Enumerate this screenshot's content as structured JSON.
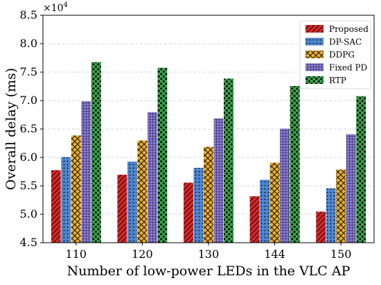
{
  "chart_data": {
    "type": "bar",
    "title": "",
    "xlabel": "Number of low-power LEDs in the VLC AP",
    "ylabel": "Overall delay (ms)",
    "y_multiplier": "×10",
    "y_multiplier_exp": "4",
    "categories": [
      "110",
      "120",
      "130",
      "144",
      "150"
    ],
    "ylim": [
      4.5,
      8.5
    ],
    "y_ticks": [
      "4.5",
      "5.0",
      "5.5",
      "6.0",
      "6.5",
      "7.0",
      "7.5",
      "8.0",
      "8.5"
    ],
    "grid": true,
    "legend_position": "top-right",
    "series": [
      {
        "name": "Proposed",
        "color": "#d62728",
        "hatch": "diagonal",
        "values": [
          5.78,
          5.7,
          5.56,
          5.32,
          5.05
        ]
      },
      {
        "name": "DP-SAC",
        "color": "#4f86cf",
        "hatch": "dots-small",
        "values": [
          6.01,
          5.93,
          5.82,
          5.61,
          5.46
        ]
      },
      {
        "name": "DDPG",
        "color": "#e6ad2e",
        "hatch": "crosshatch",
        "values": [
          6.39,
          6.3,
          6.19,
          5.91,
          5.79
        ]
      },
      {
        "name": "Fixed PD",
        "color": "#8b7bd8",
        "hatch": "grid",
        "values": [
          6.99,
          6.8,
          6.69,
          6.51,
          6.41
        ]
      },
      {
        "name": "RTP",
        "color": "#3aa24a",
        "hatch": "dots-large",
        "values": [
          7.68,
          7.58,
          7.39,
          7.26,
          7.08
        ]
      }
    ]
  }
}
